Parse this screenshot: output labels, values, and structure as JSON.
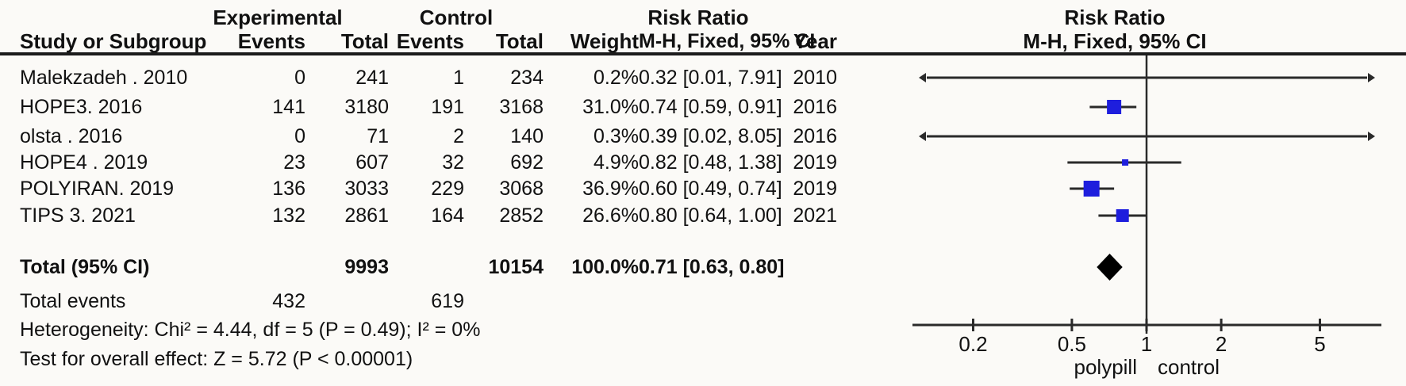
{
  "headers": {
    "group_experimental": "Experimental",
    "group_control": "Control",
    "group_risk_ratio": "Risk Ratio",
    "study": "Study or Subgroup",
    "events": "Events",
    "total": "Total",
    "events2": "Events",
    "total2": "Total",
    "weight": "Weight",
    "mh": "M-H, Fixed, 95% CI",
    "year": "Year",
    "plot_title": "Risk Ratio",
    "plot_subtitle": "M-H, Fixed, 95% CI"
  },
  "table": {
    "rows": [
      {
        "study": "Malekzadeh . 2010",
        "exp_events": "0",
        "exp_total": "241",
        "ctl_events": "1",
        "ctl_total": "234",
        "weight": "0.2%",
        "rr": "0.32 [0.01, 7.91]",
        "year": "2010"
      },
      {
        "study": "HOPE3. 2016",
        "exp_events": "141",
        "exp_total": "3180",
        "ctl_events": "191",
        "ctl_total": "3168",
        "weight": "31.0%",
        "rr": "0.74 [0.59, 0.91]",
        "year": "2016"
      },
      {
        "study": "olsta . 2016",
        "exp_events": "0",
        "exp_total": "71",
        "ctl_events": "2",
        "ctl_total": "140",
        "weight": "0.3%",
        "rr": "0.39 [0.02, 8.05]",
        "year": "2016"
      },
      {
        "study": "HOPE4 . 2019",
        "exp_events": "23",
        "exp_total": "607",
        "ctl_events": "32",
        "ctl_total": "692",
        "weight": "4.9%",
        "rr": "0.82 [0.48, 1.38]",
        "year": "2019"
      },
      {
        "study": "POLYIRAN. 2019",
        "exp_events": "136",
        "exp_total": "3033",
        "ctl_events": "229",
        "ctl_total": "3068",
        "weight": "36.9%",
        "rr": "0.60 [0.49, 0.74]",
        "year": "2019"
      },
      {
        "study": "TIPS 3. 2021",
        "exp_events": "132",
        "exp_total": "2861",
        "ctl_events": "164",
        "ctl_total": "2852",
        "weight": "26.6%",
        "rr": "0.80 [0.64, 1.00]",
        "year": "2021"
      }
    ],
    "total_row": {
      "label": "Total (95% CI)",
      "exp_total": "9993",
      "ctl_total": "10154",
      "weight": "100.0%",
      "rr": "0.71 [0.63, 0.80]"
    },
    "total_events": {
      "label": "Total events",
      "exp": "432",
      "ctl": "619"
    },
    "heterogeneity": "Heterogeneity: Chi² = 4.44, df = 5 (P = 0.49); I² = 0%",
    "overall_effect": "Test for overall effect: Z = 5.72 (P < 0.00001)"
  },
  "chart_data": {
    "type": "forest",
    "effect_measure": "Risk Ratio",
    "model": "M-H, Fixed, 95% CI",
    "x_scale": "log",
    "axis_ticks": [
      0.2,
      0.5,
      1,
      2,
      5
    ],
    "null_line": 1,
    "favors_left_label": "polypill",
    "favors_right_label": "control",
    "studies": [
      {
        "name": "Malekzadeh . 2010",
        "rr": 0.32,
        "ci_low": 0.01,
        "ci_high": 7.91,
        "weight_pct": 0.2,
        "off_scale_both": true
      },
      {
        "name": "HOPE3. 2016",
        "rr": 0.74,
        "ci_low": 0.59,
        "ci_high": 0.91,
        "weight_pct": 31.0,
        "off_scale_both": false
      },
      {
        "name": "olsta . 2016",
        "rr": 0.39,
        "ci_low": 0.02,
        "ci_high": 8.05,
        "weight_pct": 0.3,
        "off_scale_both": true
      },
      {
        "name": "HOPE4 . 2019",
        "rr": 0.82,
        "ci_low": 0.48,
        "ci_high": 1.38,
        "weight_pct": 4.9,
        "off_scale_both": false
      },
      {
        "name": "POLYIRAN. 2019",
        "rr": 0.6,
        "ci_low": 0.49,
        "ci_high": 0.74,
        "weight_pct": 36.9,
        "off_scale_both": false
      },
      {
        "name": "TIPS 3. 2021",
        "rr": 0.8,
        "ci_low": 0.64,
        "ci_high": 1.0,
        "weight_pct": 26.6,
        "off_scale_both": false
      }
    ],
    "total": {
      "label": "Total (95% CI)",
      "rr": 0.71,
      "ci_low": 0.63,
      "ci_high": 0.8
    },
    "colors": {
      "marker": "#1e1edd",
      "diamond": "#000000",
      "line": "#2a2a2a",
      "text": "#111111"
    }
  }
}
